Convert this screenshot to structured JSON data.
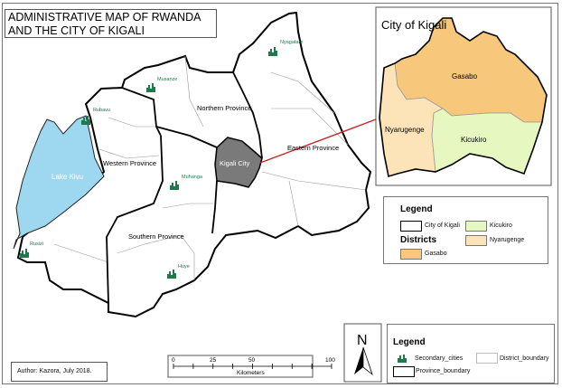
{
  "title": "ADMINISTRATIVE MAP OF RWANDA AND THE CITY OF KIGALI",
  "title_lines": [
    "ADMINISTRATIVE MAP OF RWANDA",
    "AND THE CITY OF KIGALI"
  ],
  "provinces": [
    {
      "name": "Northern Province"
    },
    {
      "name": "Eastern Province"
    },
    {
      "name": "Western Province"
    },
    {
      "name": "Southern Province"
    },
    {
      "name": "Kigali City",
      "color": "#7a7a7a"
    }
  ],
  "lake": {
    "name": "Lake Kivu",
    "color": "#9dd8f0"
  },
  "secondary_cities": [
    "Nyagatare",
    "Musanze",
    "Rubavu",
    "Muhanga",
    "Rusizi",
    "Huye"
  ],
  "inset": {
    "title": "City of Kigali",
    "districts": [
      {
        "name": "Gasabo",
        "color": "#f7c77b"
      },
      {
        "name": "Nyarugenge",
        "color": "#fde4b8"
      },
      {
        "name": "Kicukiro",
        "color": "#e6f8c0"
      }
    ],
    "legend": {
      "heading": "Legend",
      "city_label": "City of Kigali",
      "districts_heading": "Districts",
      "items": [
        "Kicukiro",
        "Nyarugenge",
        "Gasabo"
      ]
    }
  },
  "legend": {
    "heading": "Legend",
    "secondary_cities": "Secondary_cities",
    "district_boundary": "District_boundary",
    "province_boundary": "Province_boundary"
  },
  "north_arrow": "N",
  "scale_bar": {
    "ticks": [
      "0",
      "25",
      "50",
      "100"
    ],
    "unit": "Kilometers"
  },
  "author": "Author: Kazora, July 2018.",
  "colors": {
    "city_icon": "#1e7a4a",
    "connector": "#cc2222"
  }
}
